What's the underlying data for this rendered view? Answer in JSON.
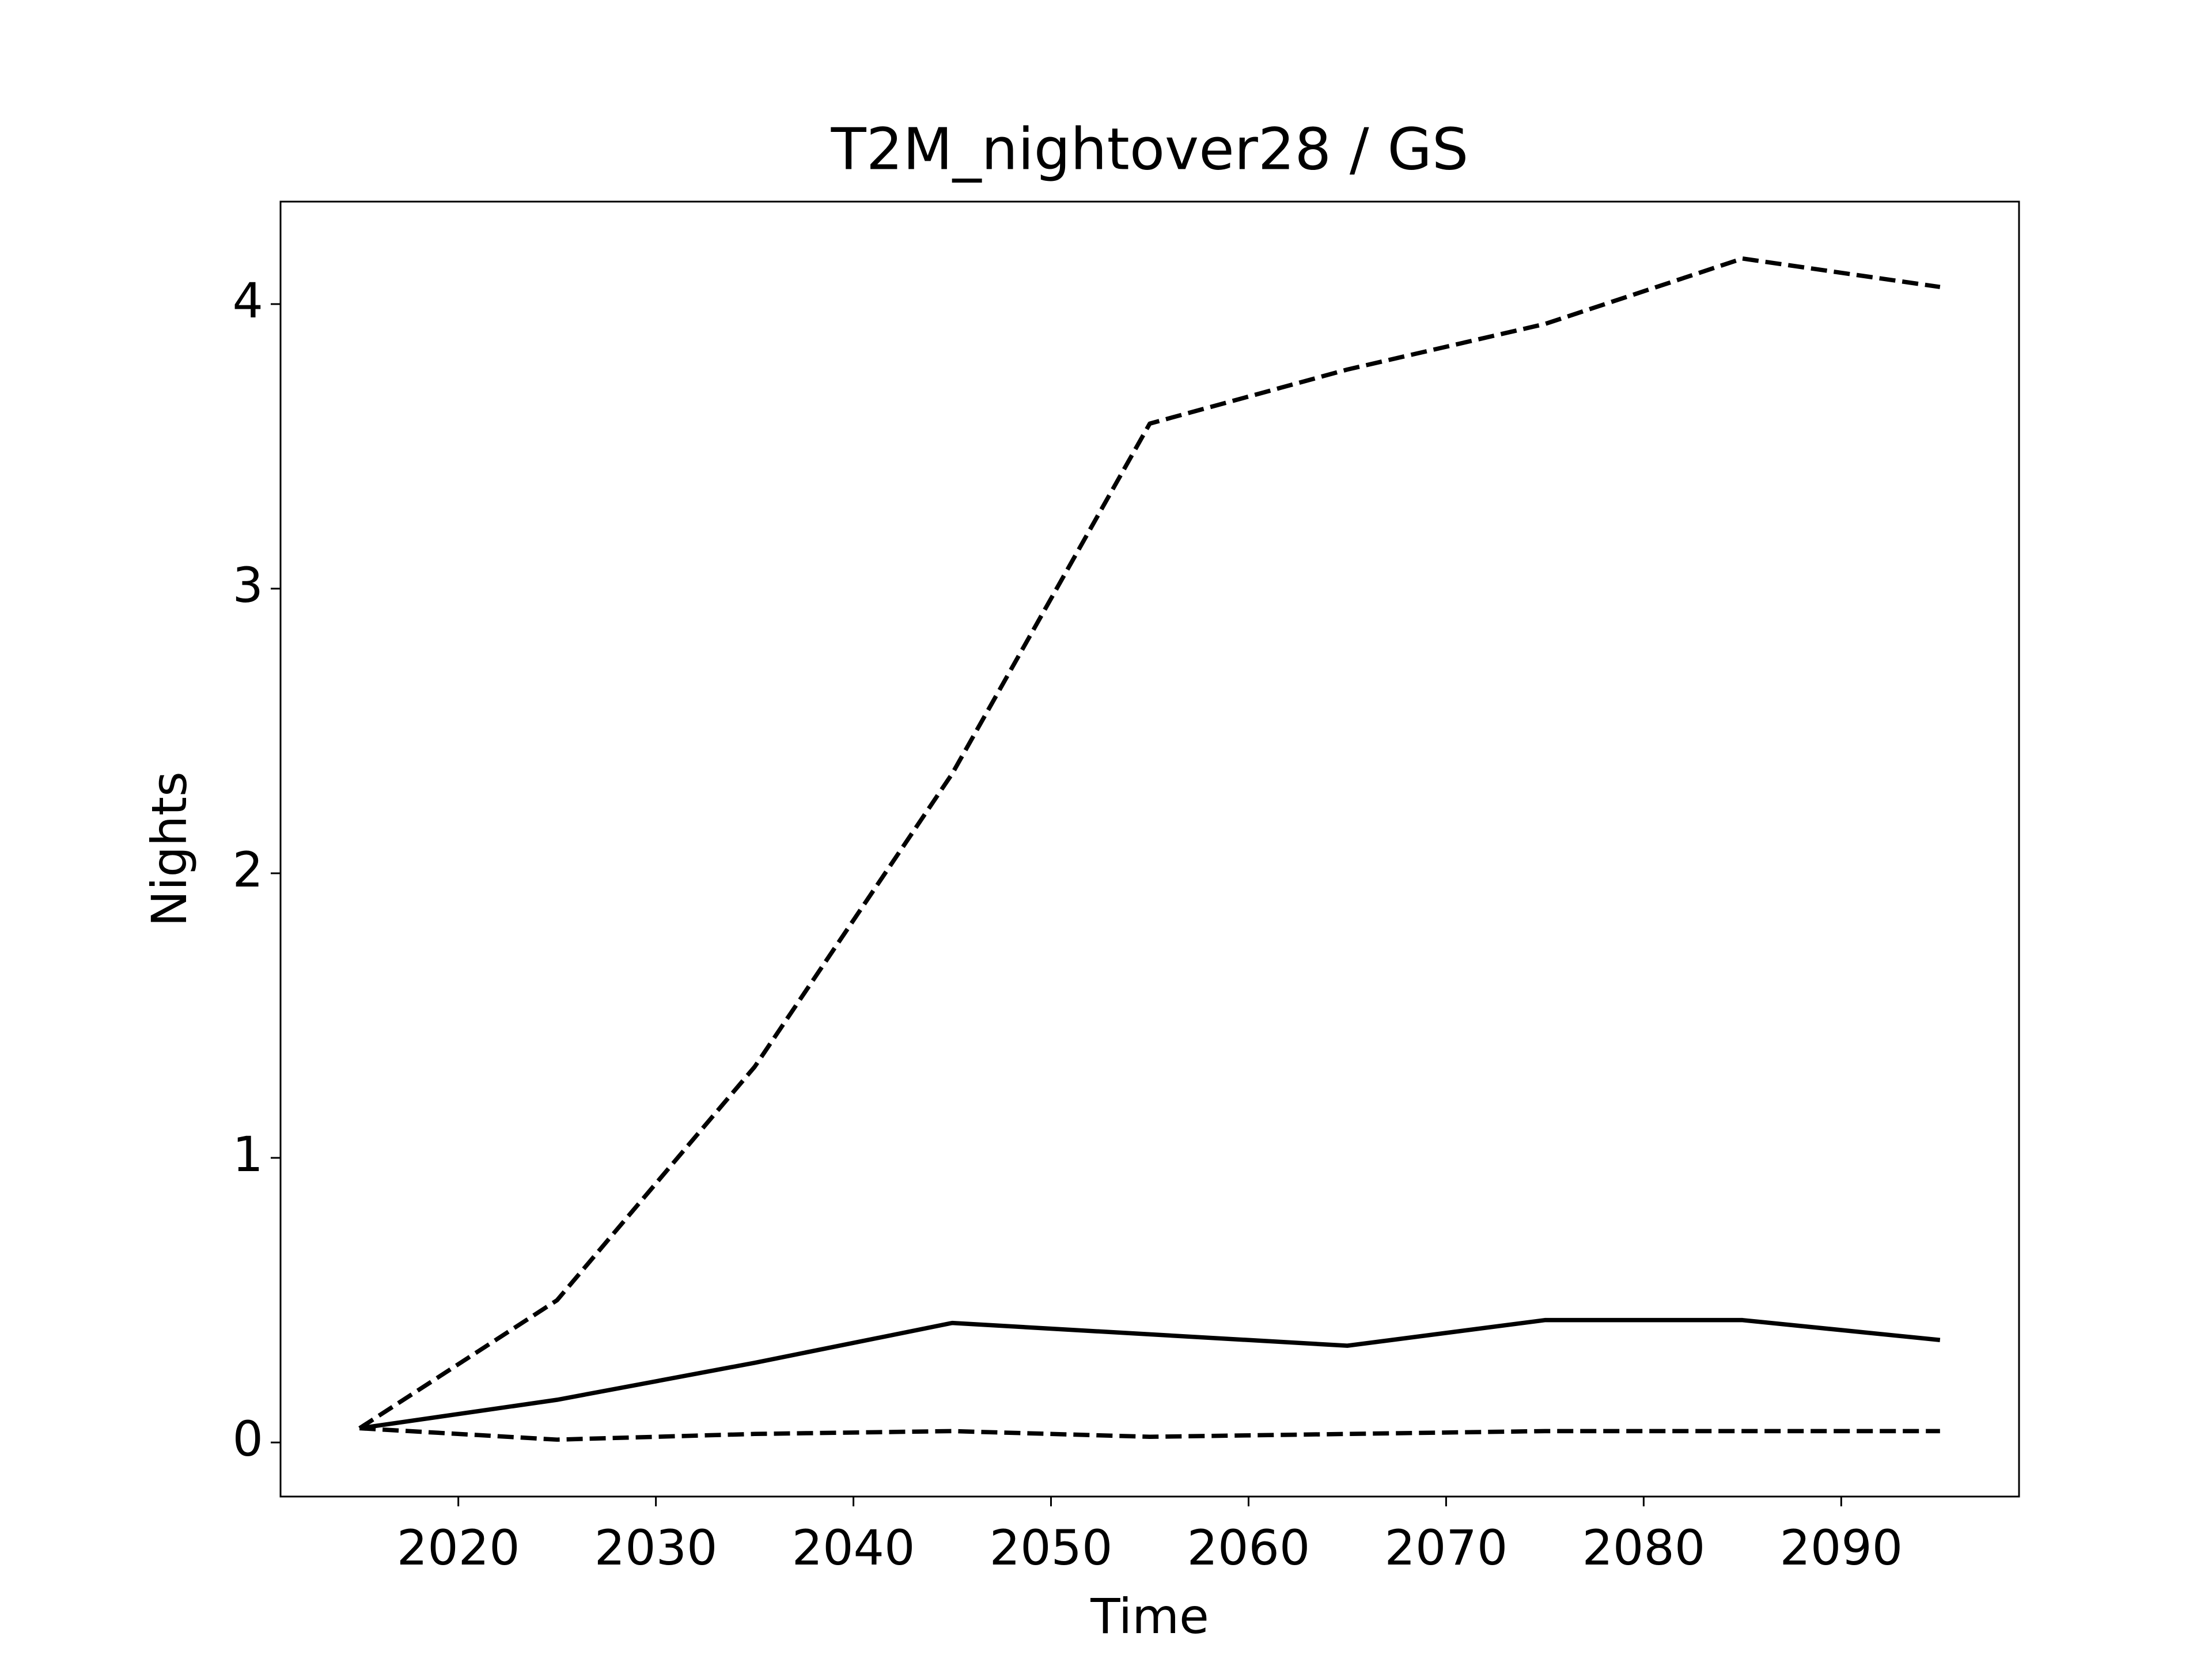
{
  "chart_data": {
    "type": "line",
    "title": "T2M_nightover28 / GS",
    "x_label": "Time",
    "y_label": "Nights",
    "x": [
      2015,
      2025,
      2035,
      2045,
      2055,
      2065,
      2075,
      2085,
      2095
    ],
    "series": [
      {
        "color": "#000000",
        "linestyle": "dashed",
        "values": [
          0.05,
          0.5,
          1.32,
          2.35,
          3.58,
          3.77,
          3.93,
          4.16,
          4.06
        ]
      },
      {
        "color": "#000000",
        "linestyle": "solid",
        "values": [
          0.05,
          0.15,
          0.28,
          0.42,
          0.38,
          0.34,
          0.43,
          0.43,
          0.36
        ]
      },
      {
        "color": "#000000",
        "linestyle": "dashed",
        "values": [
          0.05,
          0.01,
          0.03,
          0.04,
          0.02,
          0.03,
          0.04,
          0.04,
          0.04
        ]
      }
    ],
    "xlim": [
      2011,
      2099
    ],
    "xticks": [
      2020,
      2030,
      2040,
      2050,
      2060,
      2070,
      2080,
      2090
    ],
    "ylim": [
      -0.19,
      4.36
    ],
    "yticks": [
      0,
      1,
      2,
      3,
      4
    ],
    "grid": false
  }
}
